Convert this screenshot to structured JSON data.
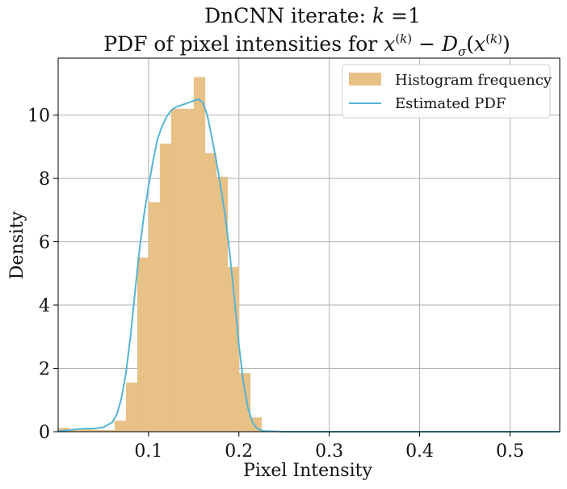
{
  "chart_data": {
    "type": "bar",
    "title": [
      "DnCNN iterate: k =1",
      "PDF of pixel intensities for x(k) − Dσ(x(k))"
    ],
    "xlabel": "Pixel Intensity",
    "ylabel": "Density",
    "xlim": [
      0.0,
      0.555
    ],
    "ylim": [
      0,
      11.8
    ],
    "xticks": [
      0.1,
      0.2,
      0.3,
      0.4,
      0.5
    ],
    "xtick_labels": [
      "0.1",
      "0.2",
      "0.3",
      "0.4",
      "0.5"
    ],
    "yticks": [
      0,
      2,
      4,
      6,
      8,
      10
    ],
    "ytick_labels": [
      "0",
      "2",
      "4",
      "6",
      "8",
      "10"
    ],
    "grid": true,
    "legend_position": "top-right",
    "colors": {
      "histogram": "#e8c187",
      "pdf": "#56b4d3"
    },
    "histogram": {
      "name": "Histogram frequency",
      "bin_edges": [
        0.0,
        0.0125,
        0.025,
        0.0375,
        0.05,
        0.0625,
        0.075,
        0.0875,
        0.1,
        0.1125,
        0.125,
        0.1375,
        0.15,
        0.1625,
        0.175,
        0.1875,
        0.2,
        0.2125,
        0.225
      ],
      "values": [
        0.12,
        0.05,
        0.07,
        0.06,
        0.05,
        0.35,
        1.55,
        5.5,
        7.25,
        9.1,
        10.2,
        10.2,
        11.2,
        8.8,
        8.05,
        5.2,
        1.85,
        0.45
      ]
    },
    "pdf": {
      "name": "Estimated PDF",
      "x": [
        0.0,
        0.01,
        0.02,
        0.03,
        0.04,
        0.05,
        0.06,
        0.065,
        0.07,
        0.075,
        0.08,
        0.085,
        0.09,
        0.095,
        0.1,
        0.105,
        0.11,
        0.115,
        0.12,
        0.125,
        0.13,
        0.135,
        0.14,
        0.145,
        0.15,
        0.155,
        0.16,
        0.165,
        0.17,
        0.175,
        0.18,
        0.185,
        0.19,
        0.195,
        0.2,
        0.205,
        0.21,
        0.215,
        0.22,
        0.225,
        0.23,
        0.24,
        0.25,
        0.3,
        0.4,
        0.5,
        0.555
      ],
      "y": [
        0.02,
        0.04,
        0.08,
        0.1,
        0.1,
        0.14,
        0.3,
        0.55,
        1.05,
        1.85,
        3.0,
        4.4,
        5.75,
        6.85,
        7.75,
        8.55,
        9.25,
        9.65,
        9.95,
        10.15,
        10.25,
        10.3,
        10.35,
        10.4,
        10.45,
        10.5,
        10.4,
        10.0,
        9.3,
        8.55,
        7.7,
        6.8,
        5.6,
        4.2,
        2.75,
        1.55,
        0.75,
        0.3,
        0.1,
        0.04,
        0.02,
        0.01,
        0.0,
        0.0,
        0.0,
        0.0,
        0.0
      ]
    }
  }
}
